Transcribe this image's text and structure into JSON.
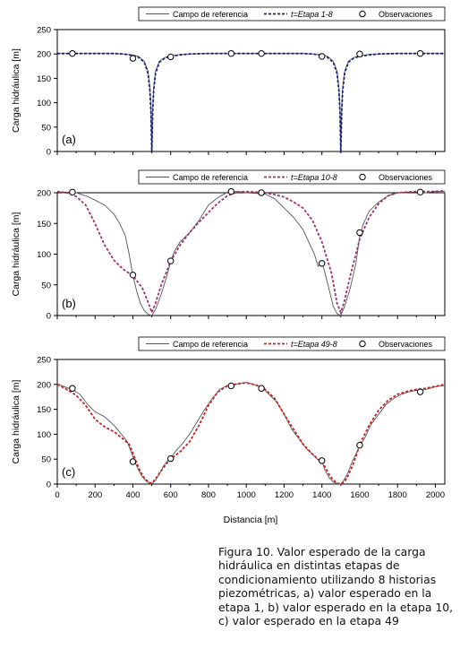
{
  "xlabel": "Distancia [m]",
  "caption": "Figura 10. Valor esperado de la carga hidráulica en distintas etapas de condicionamiento utilizando 8 historias piezométricas, a) valor esperado en la etapa 1, b) valor esperado en la etapa 10, c) valor esperado en la etapa 49",
  "colors": {
    "reference": "#555555",
    "panel_a": "#1a237e",
    "panel_b": "#a0306e",
    "panel_c": "#cc1f1f",
    "observation": "#000000"
  },
  "chart_data": [
    {
      "type": "line",
      "panel_label": "(a)",
      "ylabel": "Carga hidráulica [m]",
      "xlim": [
        0,
        2050
      ],
      "ylim": [
        0,
        250
      ],
      "yticks": [
        0,
        50,
        100,
        150,
        200,
        250
      ],
      "legend": {
        "placement": "top-right",
        "reference": "Campo de referencia",
        "estimate": "t=Etapa 1-8",
        "observations": "Observaciones"
      },
      "series": [
        {
          "name": "Campo de referencia",
          "style": "solid",
          "x": [
            0,
            100,
            200,
            300,
            350,
            400,
            430,
            460,
            480,
            490,
            495,
            500,
            505,
            510,
            520,
            540,
            570,
            600,
            650,
            700,
            800,
            900,
            1000,
            1100,
            1200,
            1300,
            1350,
            1400,
            1430,
            1460,
            1480,
            1490,
            1495,
            1500,
            1505,
            1510,
            1520,
            1540,
            1570,
            1600,
            1650,
            1700,
            1800,
            1900,
            2000,
            2050
          ],
          "y": [
            201,
            201,
            201,
            201,
            200,
            198,
            195,
            185,
            165,
            130,
            90,
            0,
            90,
            130,
            165,
            185,
            193,
            196,
            199,
            200,
            201,
            201,
            201,
            201,
            201,
            201,
            200,
            198,
            195,
            185,
            165,
            130,
            90,
            0,
            90,
            130,
            165,
            185,
            193,
            196,
            199,
            200,
            201,
            201,
            201,
            201
          ]
        },
        {
          "name": "t=Etapa 1-8",
          "style": "dashed",
          "x": [
            0,
            100,
            200,
            300,
            350,
            400,
            430,
            460,
            480,
            490,
            495,
            500,
            505,
            510,
            520,
            540,
            570,
            600,
            650,
            700,
            800,
            900,
            1000,
            1100,
            1200,
            1300,
            1350,
            1400,
            1430,
            1460,
            1480,
            1490,
            1495,
            1500,
            1505,
            1510,
            1520,
            1540,
            1570,
            1600,
            1650,
            1700,
            1800,
            1900,
            2000,
            2050
          ],
          "y": [
            201,
            201,
            201,
            201,
            200,
            197,
            193,
            183,
            160,
            125,
            85,
            0,
            85,
            125,
            160,
            183,
            192,
            195,
            198,
            200,
            201,
            201,
            201,
            201,
            201,
            201,
            200,
            197,
            193,
            183,
            160,
            125,
            85,
            0,
            85,
            125,
            160,
            183,
            192,
            195,
            198,
            200,
            201,
            201,
            201,
            201
          ]
        }
      ],
      "observations": {
        "x": [
          80,
          400,
          600,
          920,
          1080,
          1400,
          1600,
          1920
        ],
        "y": [
          201,
          191,
          194,
          201,
          201,
          195,
          200,
          201
        ]
      }
    },
    {
      "type": "line",
      "panel_label": "(b)",
      "ylabel": "Carga hidráulica [m]",
      "xlim": [
        0,
        2050
      ],
      "ylim": [
        0,
        200
      ],
      "yticks": [
        0,
        50,
        100,
        150,
        200
      ],
      "legend": {
        "placement": "top-right",
        "reference": "Campo de referencia",
        "estimate": "t=Etapa 10-8",
        "observations": "Observaciones"
      },
      "series": [
        {
          "name": "Campo de referencia",
          "style": "solid",
          "x": [
            0,
            50,
            100,
            150,
            200,
            250,
            300,
            330,
            360,
            380,
            400,
            420,
            440,
            460,
            480,
            500,
            520,
            550,
            580,
            600,
            620,
            650,
            700,
            750,
            800,
            850,
            900,
            950,
            1000,
            1050,
            1100,
            1150,
            1200,
            1250,
            1300,
            1330,
            1360,
            1380,
            1400,
            1420,
            1440,
            1460,
            1480,
            1500,
            1520,
            1550,
            1580,
            1600,
            1620,
            1650,
            1700,
            1750,
            1800,
            1850,
            1900,
            1950,
            2000,
            2050
          ],
          "y": [
            201,
            201,
            200,
            195,
            188,
            180,
            165,
            150,
            130,
            100,
            65,
            40,
            20,
            8,
            2,
            0,
            10,
            35,
            65,
            88,
            105,
            120,
            135,
            155,
            180,
            192,
            201,
            202,
            200,
            199,
            198,
            190,
            175,
            160,
            140,
            120,
            100,
            80,
            88,
            65,
            40,
            15,
            3,
            0,
            15,
            45,
            85,
            130,
            150,
            170,
            185,
            195,
            200,
            201,
            201,
            200,
            202,
            202
          ]
        },
        {
          "name": "t=Etapa 10-8",
          "style": "dashed",
          "x": [
            0,
            50,
            100,
            150,
            200,
            250,
            300,
            350,
            400,
            450,
            480,
            500,
            520,
            550,
            600,
            650,
            700,
            750,
            800,
            850,
            900,
            950,
            1000,
            1050,
            1100,
            1150,
            1200,
            1250,
            1300,
            1350,
            1400,
            1450,
            1480,
            1500,
            1520,
            1550,
            1600,
            1650,
            1700,
            1750,
            1800,
            1850,
            1900,
            1950,
            2000,
            2050
          ],
          "y": [
            202,
            200,
            194,
            180,
            150,
            115,
            90,
            75,
            65,
            45,
            22,
            5,
            20,
            50,
            88,
            115,
            135,
            152,
            168,
            183,
            195,
            201,
            202,
            201,
            200,
            197,
            193,
            185,
            175,
            155,
            120,
            70,
            20,
            5,
            25,
            65,
            125,
            160,
            182,
            195,
            200,
            201,
            202,
            202,
            202,
            203
          ]
        }
      ],
      "observations": {
        "x": [
          80,
          400,
          600,
          920,
          1080,
          1400,
          1600,
          1920
        ],
        "y": [
          201,
          66,
          89,
          202,
          200,
          85,
          135,
          201
        ]
      }
    },
    {
      "type": "line",
      "panel_label": "(c)",
      "ylabel": "Carga hidráulica [m]",
      "xlim": [
        0,
        2050
      ],
      "ylim": [
        0,
        250
      ],
      "yticks": [
        0,
        50,
        100,
        150,
        200,
        250
      ],
      "xticks": [
        0,
        200,
        400,
        600,
        800,
        1000,
        1200,
        1400,
        1600,
        1800,
        2000
      ],
      "legend": {
        "placement": "top-right",
        "reference": "Campo de referencia",
        "estimate": "t=Etapa 49-8",
        "observations": "Observaciones"
      },
      "series": [
        {
          "name": "Campo de referencia",
          "style": "solid",
          "x": [
            0,
            40,
            80,
            120,
            160,
            200,
            250,
            300,
            340,
            370,
            390,
            410,
            430,
            450,
            470,
            490,
            500,
            520,
            540,
            560,
            580,
            600,
            630,
            660,
            700,
            740,
            780,
            820,
            860,
            900,
            940,
            980,
            1000,
            1040,
            1080,
            1120,
            1160,
            1200,
            1240,
            1280,
            1320,
            1350,
            1380,
            1400,
            1420,
            1440,
            1460,
            1480,
            1500,
            1520,
            1540,
            1560,
            1580,
            1600,
            1630,
            1660,
            1700,
            1740,
            1780,
            1820,
            1860,
            1900,
            1950,
            2000,
            2050
          ],
          "y": [
            201,
            195,
            190,
            180,
            160,
            145,
            135,
            118,
            100,
            85,
            65,
            45,
            28,
            15,
            6,
            1,
            0,
            8,
            20,
            35,
            45,
            52,
            68,
            80,
            100,
            125,
            150,
            172,
            190,
            198,
            200,
            203,
            204,
            200,
            195,
            180,
            165,
            140,
            110,
            90,
            70,
            60,
            48,
            45,
            25,
            12,
            4,
            1,
            0,
            10,
            25,
            45,
            60,
            75,
            95,
            120,
            140,
            160,
            172,
            180,
            185,
            188,
            190,
            195,
            198
          ]
        },
        {
          "name": "t=Etapa 49-8",
          "style": "dashed",
          "x": [
            0,
            50,
            100,
            150,
            200,
            250,
            300,
            350,
            380,
            400,
            420,
            440,
            460,
            480,
            500,
            520,
            540,
            560,
            580,
            600,
            650,
            700,
            750,
            800,
            850,
            900,
            950,
            1000,
            1050,
            1100,
            1150,
            1200,
            1250,
            1300,
            1350,
            1380,
            1400,
            1420,
            1440,
            1460,
            1480,
            1500,
            1520,
            1540,
            1560,
            1580,
            1600,
            1650,
            1700,
            1750,
            1800,
            1850,
            1900,
            1950,
            2000,
            2050
          ],
          "y": [
            200,
            190,
            178,
            158,
            130,
            115,
            105,
            90,
            80,
            62,
            42,
            25,
            12,
            5,
            1,
            10,
            22,
            32,
            42,
            50,
            65,
            85,
            118,
            158,
            185,
            197,
            201,
            203,
            199,
            190,
            172,
            140,
            110,
            80,
            60,
            50,
            45,
            32,
            18,
            8,
            2,
            0,
            5,
            18,
            35,
            55,
            80,
            118,
            148,
            168,
            180,
            186,
            190,
            192,
            196,
            200
          ]
        }
      ],
      "observations": {
        "x": [
          80,
          400,
          600,
          920,
          1080,
          1400,
          1600,
          1920
        ],
        "y": [
          192,
          45,
          51,
          197,
          192,
          47,
          78,
          185
        ]
      }
    }
  ]
}
